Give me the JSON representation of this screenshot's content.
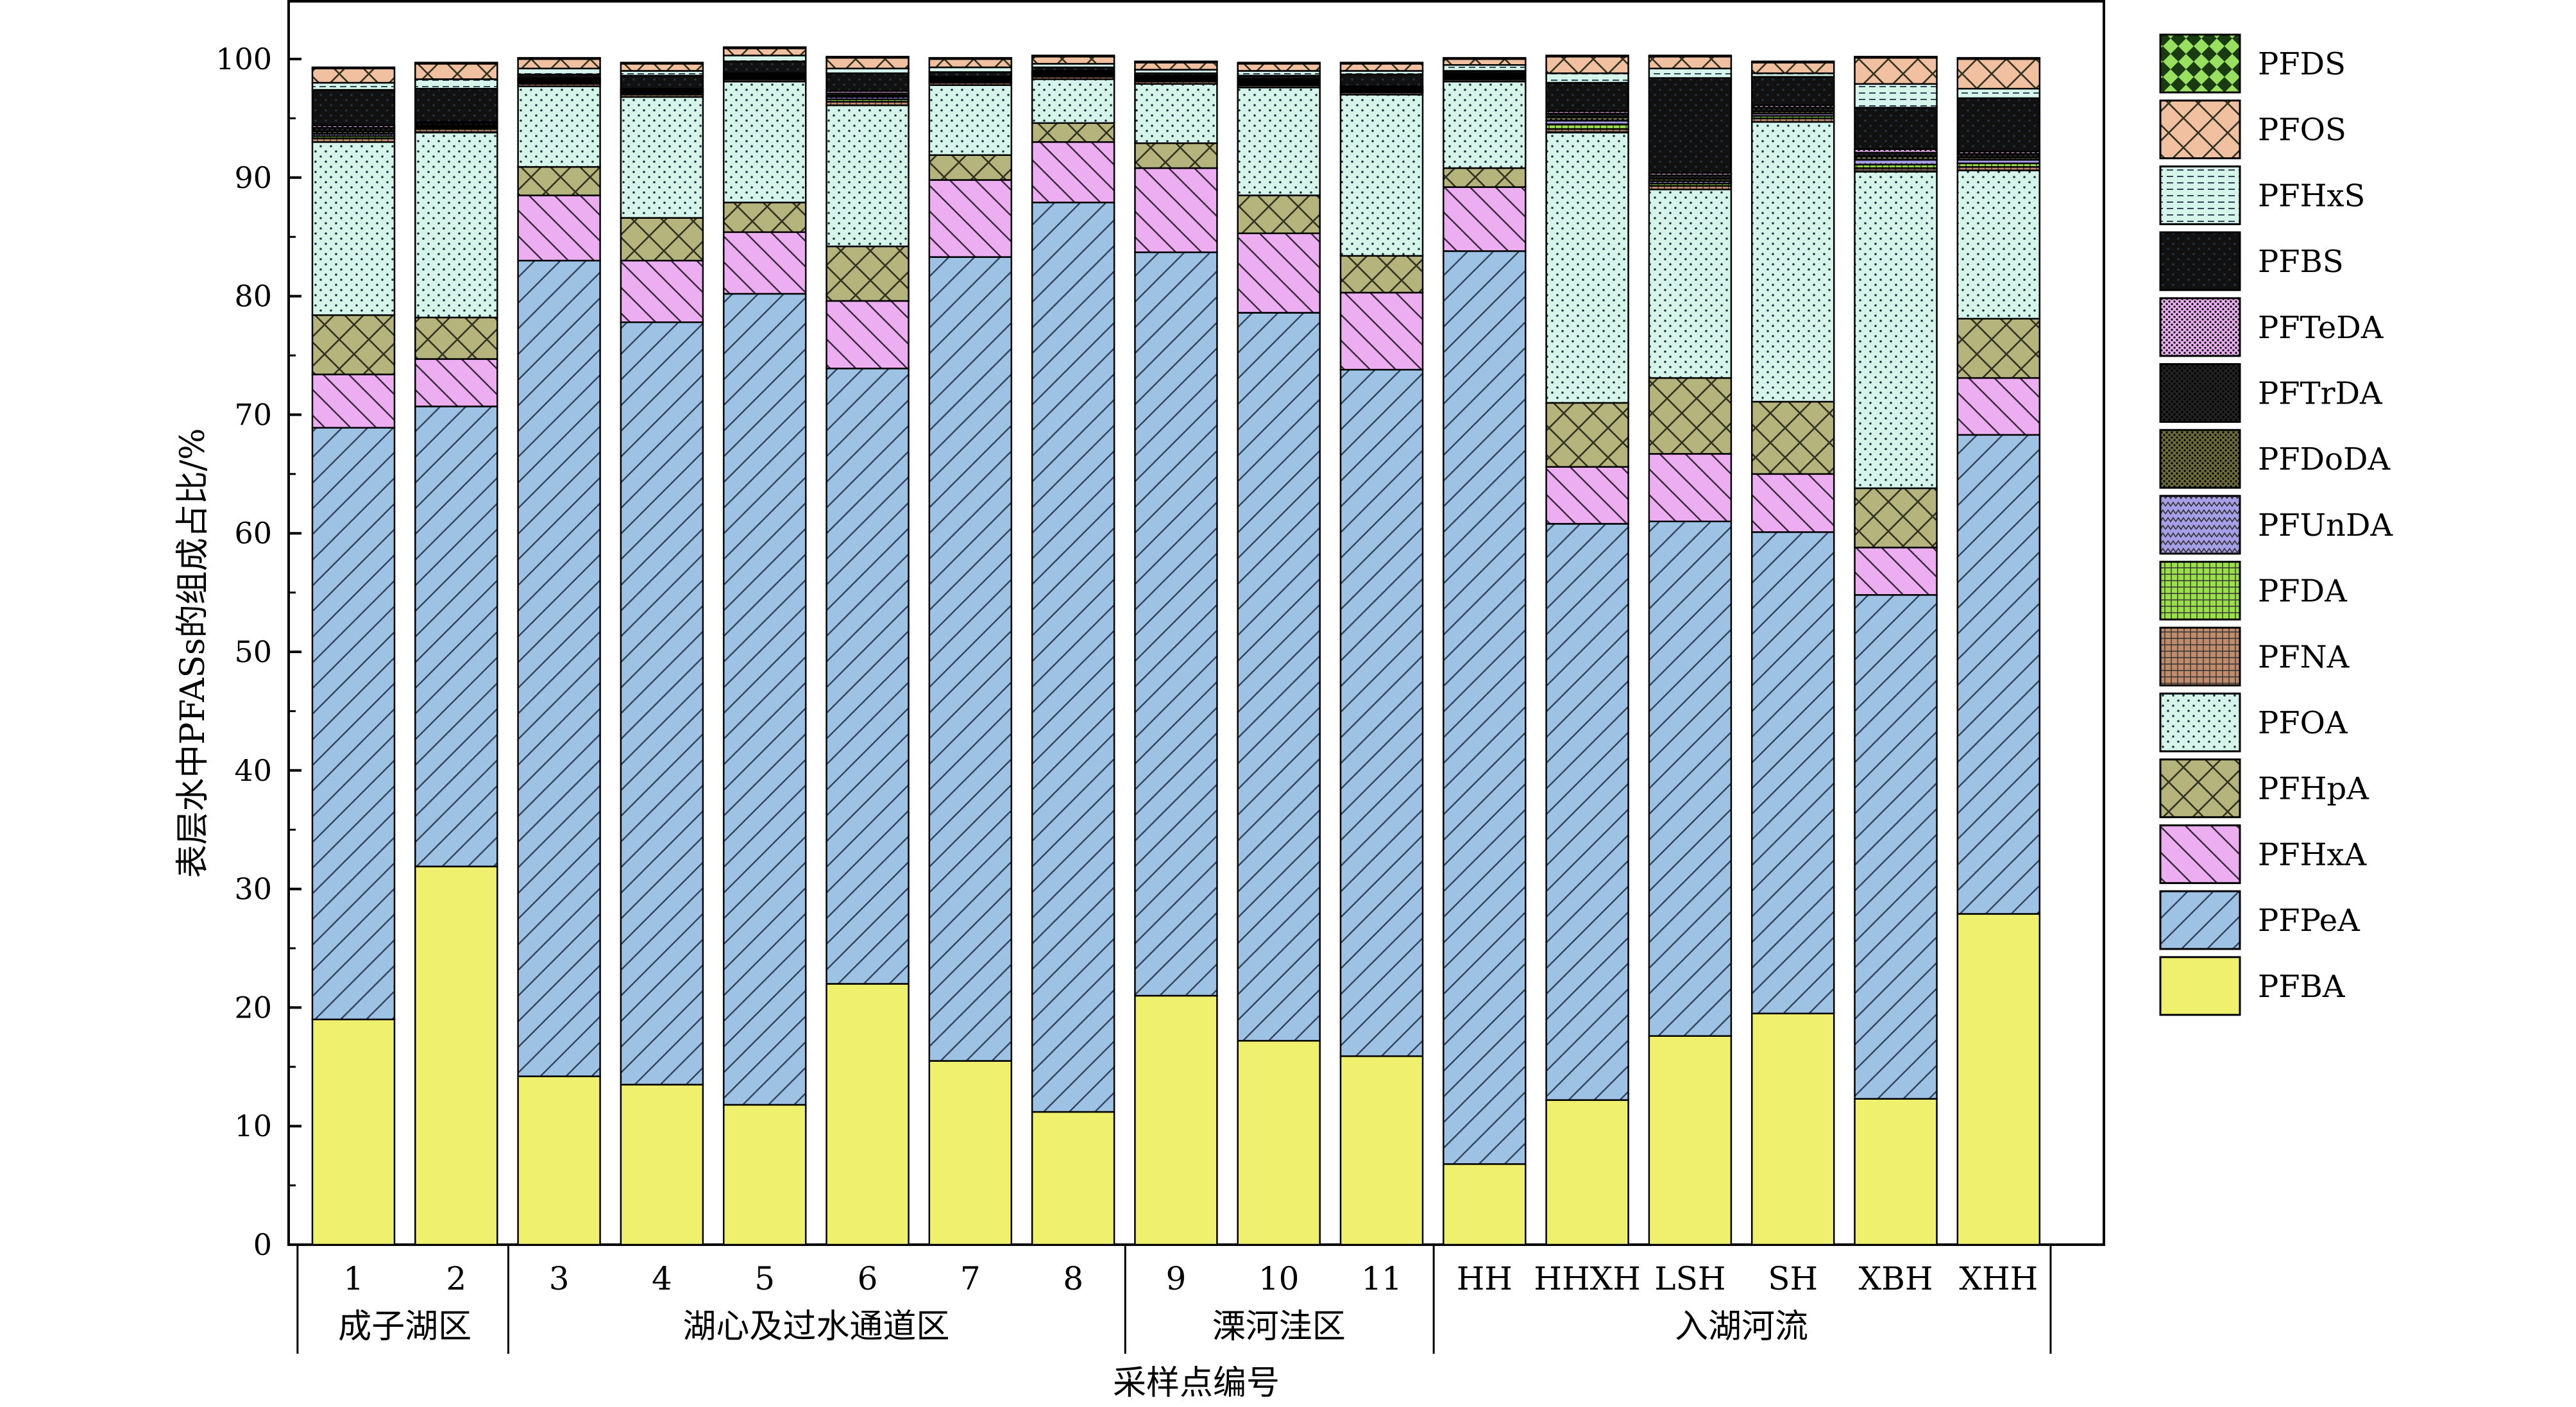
{
  "chart_data": {
    "type": "bar",
    "stacked": true,
    "xlabel": "采样点编号",
    "ylabel": "表层水中PFASs的组成占比/%",
    "ylim": [
      0,
      100
    ],
    "yticks": [
      0,
      10,
      20,
      30,
      40,
      50,
      60,
      70,
      80,
      90,
      100
    ],
    "grid": false,
    "legend_position": "right",
    "categories": [
      "1",
      "2",
      "3",
      "4",
      "5",
      "6",
      "7",
      "8",
      "9",
      "10",
      "11",
      "HH",
      "HHXH",
      "LSH",
      "SH",
      "XBH",
      "XHH"
    ],
    "groups": [
      {
        "label": "成子湖区",
        "categories": [
          "1",
          "2"
        ]
      },
      {
        "label": "湖心及过水通道区",
        "categories": [
          "3",
          "4",
          "5",
          "6",
          "7",
          "8"
        ]
      },
      {
        "label": "溧河洼区",
        "categories": [
          "9",
          "10",
          "11"
        ]
      },
      {
        "label": "入湖河流",
        "categories": [
          "HH",
          "HHXH",
          "LSH",
          "SH",
          "XBH",
          "XHH"
        ]
      }
    ],
    "series": [
      {
        "name": "PFBA",
        "color": "#eef06e",
        "pattern": "solid",
        "values": [
          19.0,
          31.9,
          14.2,
          13.5,
          11.8,
          22.0,
          15.5,
          11.2,
          21.0,
          17.2,
          15.9,
          6.8,
          12.2,
          17.6,
          19.5,
          12.3,
          27.9
        ]
      },
      {
        "name": "PFPeA",
        "color": "#9ec2e3",
        "pattern": "diag-right",
        "values": [
          49.9,
          38.8,
          68.8,
          64.3,
          68.4,
          51.9,
          67.8,
          76.7,
          62.7,
          61.4,
          57.9,
          77.0,
          48.6,
          43.4,
          40.6,
          42.5,
          40.4
        ]
      },
      {
        "name": "PFHxA",
        "color": "#ecaef0",
        "pattern": "diag-left",
        "values": [
          4.5,
          4.0,
          5.5,
          5.2,
          5.2,
          5.7,
          6.5,
          5.1,
          7.1,
          6.7,
          6.5,
          5.4,
          4.8,
          5.7,
          4.9,
          4.0,
          4.8
        ]
      },
      {
        "name": "PFHpA",
        "color": "#b5b47c",
        "pattern": "cross",
        "values": [
          5.0,
          3.5,
          2.4,
          3.6,
          2.5,
          4.6,
          2.1,
          1.6,
          2.1,
          3.2,
          3.1,
          1.6,
          5.4,
          6.4,
          6.1,
          5.0,
          5.0
        ]
      },
      {
        "name": "PFOA",
        "color": "#d6f5ea",
        "pattern": "dots",
        "values": [
          14.6,
          15.6,
          6.8,
          10.2,
          10.2,
          11.9,
          5.9,
          3.7,
          5.0,
          9.1,
          13.6,
          7.3,
          22.8,
          15.9,
          23.6,
          26.7,
          12.5
        ]
      },
      {
        "name": "PFNA",
        "color": "#c08c6c",
        "pattern": "grid",
        "values": [
          0.3,
          0.3,
          0.2,
          0.2,
          0.2,
          0.3,
          0.2,
          0.2,
          0.2,
          0.2,
          0.2,
          0.2,
          0.3,
          0.3,
          0.3,
          0.3,
          0.3
        ]
      },
      {
        "name": "PFDA",
        "color": "#9ae04a",
        "pattern": "grid",
        "values": [
          0.2,
          0.1,
          0.1,
          0.1,
          0.1,
          0.2,
          0.1,
          0.1,
          0.1,
          0.1,
          0.1,
          0.1,
          0.4,
          0.2,
          0.2,
          0.3,
          0.3
        ]
      },
      {
        "name": "PFUnDA",
        "color": "#a79ee8",
        "pattern": "zigzag",
        "values": [
          0.2,
          0.1,
          0.1,
          0.1,
          0.1,
          0.2,
          0.1,
          0.1,
          0.1,
          0.1,
          0.1,
          0.1,
          0.3,
          0.2,
          0.2,
          0.4,
          0.3
        ]
      },
      {
        "name": "PFDoDA",
        "color": "#6a6a3a",
        "pattern": "dense-dots",
        "values": [
          0.2,
          0.1,
          0.1,
          0.1,
          0.1,
          0.1,
          0.1,
          0.1,
          0.1,
          0.1,
          0.1,
          0.1,
          0.3,
          0.2,
          0.2,
          0.3,
          0.2
        ]
      },
      {
        "name": "PFTrDA",
        "color": "#222222",
        "pattern": "dense-dots",
        "values": [
          0.3,
          0.2,
          0.1,
          0.1,
          0.1,
          0.2,
          0.1,
          0.1,
          0.1,
          0.1,
          0.1,
          0.1,
          0.3,
          0.3,
          0.3,
          0.3,
          0.3
        ]
      },
      {
        "name": "PFTeDA",
        "color": "#e8b0ec",
        "pattern": "dense-dots",
        "values": [
          0.2,
          0.1,
          0.1,
          0.1,
          0.1,
          0.2,
          0.1,
          0.1,
          0.1,
          0.1,
          0.1,
          0.1,
          0.2,
          0.2,
          0.2,
          0.3,
          0.2
        ]
      },
      {
        "name": "PFBS",
        "color": "#111111",
        "pattern": "dots",
        "values": [
          3.0,
          2.8,
          0.3,
          1.1,
          1.0,
          1.5,
          0.4,
          0.3,
          0.2,
          0.3,
          1.0,
          0.2,
          2.4,
          8.0,
          2.4,
          3.5,
          4.5
        ]
      },
      {
        "name": "PFHxS",
        "color": "#d6f5ea",
        "pattern": "hlines",
        "values": [
          0.6,
          0.8,
          0.5,
          0.4,
          0.5,
          0.4,
          0.4,
          0.3,
          0.3,
          0.4,
          0.3,
          0.5,
          0.8,
          0.8,
          0.3,
          2.0,
          0.8
        ]
      },
      {
        "name": "PFOS",
        "color": "#f0c0a0",
        "pattern": "cross",
        "values": [
          1.2,
          1.3,
          0.8,
          0.6,
          0.6,
          0.9,
          0.7,
          0.6,
          0.6,
          0.6,
          0.6,
          0.5,
          1.4,
          1.0,
          0.9,
          2.2,
          2.5
        ]
      },
      {
        "name": "PFDS",
        "color": "#9ae060",
        "pattern": "diamond",
        "values": [
          0.1,
          0.1,
          0.1,
          0.1,
          0.1,
          0.1,
          0.1,
          0.1,
          0.1,
          0.1,
          0.1,
          0.1,
          0.1,
          0.1,
          0.1,
          0.1,
          0.1
        ]
      }
    ]
  }
}
